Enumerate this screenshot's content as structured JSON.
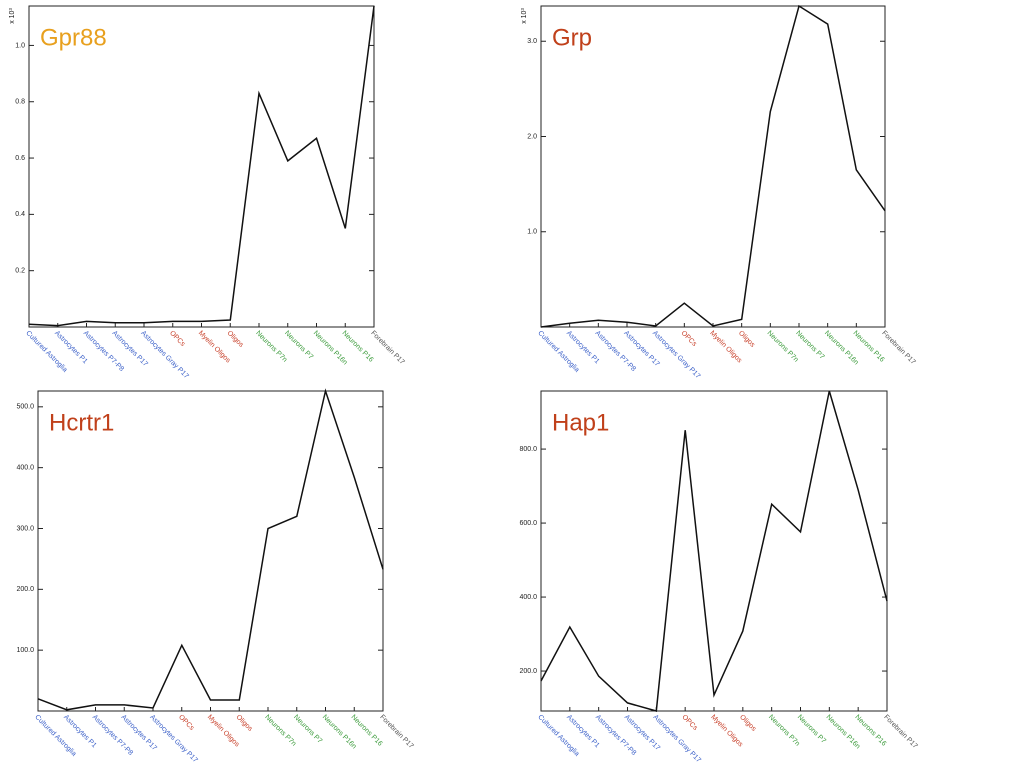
{
  "chart_data": [
    {
      "type": "line",
      "title": "Gpr88",
      "title_color": "#e8a01e",
      "y_axis_label": "x 10³",
      "categories": [
        "Cultured Astroglia",
        "Astrocytes P1",
        "Astrocytes P7-P8",
        "Astrocytes P17",
        "Astrocytes Gray P17",
        "OPCs",
        "Myelin Oligos",
        "Oligos",
        "Neurons P7n",
        "Neurons P7",
        "Neurons P16n",
        "Neurons P16",
        "Forebrain P17"
      ],
      "category_colors": [
        "#3a5fc8",
        "#3a5fc8",
        "#3a5fc8",
        "#3a5fc8",
        "#3a5fc8",
        "#c8402a",
        "#c8402a",
        "#c8402a",
        "#3a9a3a",
        "#3a9a3a",
        "#3a9a3a",
        "#3a9a3a",
        "#555555"
      ],
      "values": [
        0.01,
        0.005,
        0.02,
        0.015,
        0.015,
        0.02,
        0.02,
        0.025,
        0.83,
        0.59,
        0.67,
        0.35,
        1.14
      ],
      "color": "#111111",
      "ylim": [
        0,
        1.14
      ],
      "yticks": [
        0.2,
        0.4,
        0.6,
        0.8,
        {
          "value": 1.0,
          "label": "1.0"
        }
      ]
    },
    {
      "type": "line",
      "title": "Grp",
      "title_color": "#c0401a",
      "y_axis_label": "x 10³",
      "categories": [
        "Cultured Astroglia",
        "Astrocytes P1",
        "Astrocytes P7-P8",
        "Astrocytes P17",
        "Astrocytes Gray P17",
        "OPCs",
        "Myelin Oligos",
        "Oligos",
        "Neurons P7n",
        "Neurons P7",
        "Neurons P16n",
        "Neurons P16",
        "Forebrain P17"
      ],
      "category_colors": [
        "#3a5fc8",
        "#3a5fc8",
        "#3a5fc8",
        "#3a5fc8",
        "#3a5fc8",
        "#c8402a",
        "#c8402a",
        "#c8402a",
        "#3a9a3a",
        "#3a9a3a",
        "#3a9a3a",
        "#3a9a3a",
        "#555555"
      ],
      "values": [
        0.0,
        0.04,
        0.07,
        0.05,
        0.01,
        0.25,
        0.01,
        0.08,
        2.26,
        3.37,
        3.18,
        1.65,
        1.22
      ],
      "color": "#111111",
      "ylim": [
        0,
        3.37
      ],
      "yticks": [
        {
          "value": 1.0,
          "label": "1.0"
        },
        {
          "value": 2.0,
          "label": "2.0"
        },
        {
          "value": 3.0,
          "label": "3.0"
        }
      ]
    },
    {
      "type": "line",
      "title": "Hcrtr1",
      "title_color": "#c0401a",
      "categories": [
        "Cultured Astroglia",
        "Astrocytes P1",
        "Astrocytes P7-P8",
        "Astrocytes P17",
        "Astrocytes Gray P17",
        "OPCs",
        "Myelin Oligos",
        "Oligos",
        "Neurons P7n",
        "Neurons P7",
        "Neurons P16n",
        "Neurons P16",
        "Forebrain P17"
      ],
      "category_colors": [
        "#3a5fc8",
        "#3a5fc8",
        "#3a5fc8",
        "#3a5fc8",
        "#3a5fc8",
        "#c8402a",
        "#c8402a",
        "#c8402a",
        "#3a9a3a",
        "#3a9a3a",
        "#3a9a3a",
        "#3a9a3a",
        "#555555"
      ],
      "values": [
        20,
        2,
        10,
        10,
        5,
        108,
        18,
        18,
        300,
        320,
        526,
        384,
        233
      ],
      "color": "#111111",
      "ylim": [
        0,
        526
      ],
      "yticks": [
        {
          "value": 100,
          "label": "100.0"
        },
        {
          "value": 200,
          "label": "200.0"
        },
        {
          "value": 300,
          "label": "300.0"
        },
        {
          "value": 400,
          "label": "400.0"
        },
        {
          "value": 500,
          "label": "500.0"
        }
      ]
    },
    {
      "type": "line",
      "title": "Hap1",
      "title_color": "#c0401a",
      "categories": [
        "Cultured Astroglia",
        "Astrocytes P1",
        "Astrocytes P7-P8",
        "Astrocytes P17",
        "Astrocytes Gray P17",
        "OPCs",
        "Myelin Oligos",
        "Oligos",
        "Neurons P7n",
        "Neurons P7",
        "Neurons P16n",
        "Neurons P16",
        "Forebrain P17"
      ],
      "category_colors": [
        "#3a5fc8",
        "#3a5fc8",
        "#3a5fc8",
        "#3a5fc8",
        "#3a5fc8",
        "#c8402a",
        "#c8402a",
        "#c8402a",
        "#3a9a3a",
        "#3a9a3a",
        "#3a9a3a",
        "#3a9a3a",
        "#555555"
      ],
      "values": [
        173,
        319,
        186,
        114,
        92,
        851,
        135,
        308,
        651,
        576,
        957,
        689,
        389
      ],
      "color": "#111111",
      "ylim": [
        92,
        957
      ],
      "yticks": [
        {
          "value": 200,
          "label": "200.0"
        },
        {
          "value": 400,
          "label": "400.0"
        },
        {
          "value": 600,
          "label": "600.0"
        },
        {
          "value": 800,
          "label": "800.0"
        }
      ]
    }
  ]
}
